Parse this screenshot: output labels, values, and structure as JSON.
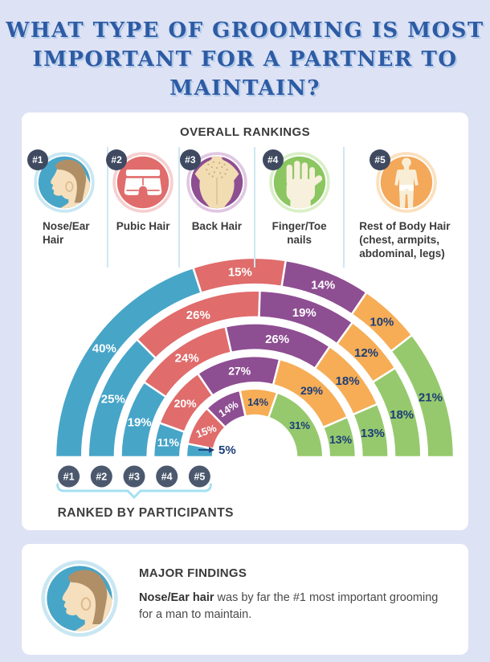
{
  "title": {
    "lines": [
      "WHAT TYPE OF GROOMING IS MOST",
      "IMPORTANT FOR A PARTNER TO",
      "MAINTAIN?"
    ]
  },
  "rankings": {
    "heading": "OVERALL RANKINGS",
    "items": [
      {
        "badge": "#1",
        "label": "Nose/Ear Hair",
        "color": "#47a5c8",
        "ring": "#c9e7f2",
        "icon": "head-profile-icon"
      },
      {
        "badge": "#2",
        "label": "Pubic Hair",
        "color": "#e06c6c",
        "ring": "#f6cfcf",
        "icon": "boxer-briefs-icon"
      },
      {
        "badge": "#3",
        "label": "Back Hair",
        "color": "#8e4e92",
        "ring": "#e0c7e2",
        "icon": "back-hair-icon"
      },
      {
        "badge": "#4",
        "label": "Finger/Toe nails",
        "color": "#8bc661",
        "ring": "#d9efc6",
        "icon": "hand-icon"
      },
      {
        "badge": "#5",
        "label": "Rest of Body Hair (chest, armpits, abdominal, legs)",
        "color": "#f3a85a",
        "ring": "#fbe0bd",
        "icon": "body-icon"
      }
    ]
  },
  "chart_data": {
    "type": "radial-half-donut",
    "categories": [
      "Nose/Ear Hair",
      "Pubic Hair",
      "Back Hair",
      "Finger/Toe nails",
      "Rest of Body Hair"
    ],
    "category_colors": [
      "#47a5c8",
      "#e06c6c",
      "#8e4e92",
      "#f6ad55",
      "#96c96d"
    ],
    "label_text_colors": [
      "#ffffff",
      "#ffffff",
      "#ffffff",
      "#1c3d78",
      "#1c3d78"
    ],
    "unit": "%",
    "rings": [
      {
        "rank": "#1",
        "values": [
          40,
          15,
          14,
          10,
          21
        ]
      },
      {
        "rank": "#2",
        "values": [
          25,
          26,
          19,
          12,
          18
        ]
      },
      {
        "rank": "#3",
        "values": [
          19,
          24,
          26,
          18,
          13
        ]
      },
      {
        "rank": "#4",
        "values": [
          11,
          20,
          27,
          29,
          13
        ]
      },
      {
        "rank": "#5",
        "values": [
          5,
          15,
          14,
          14,
          31
        ]
      }
    ],
    "callout": {
      "label": "5%"
    },
    "axis_caption": "RANKED BY PARTICIPANTS",
    "badge_color": "#4b586d",
    "bracket_color": "#a6dff2"
  },
  "findings": {
    "heading": "MAJOR FINDINGS",
    "highlight": "Nose/Ear hair",
    "text_after": " was by far the #1 most important grooming for a man to maintain."
  }
}
